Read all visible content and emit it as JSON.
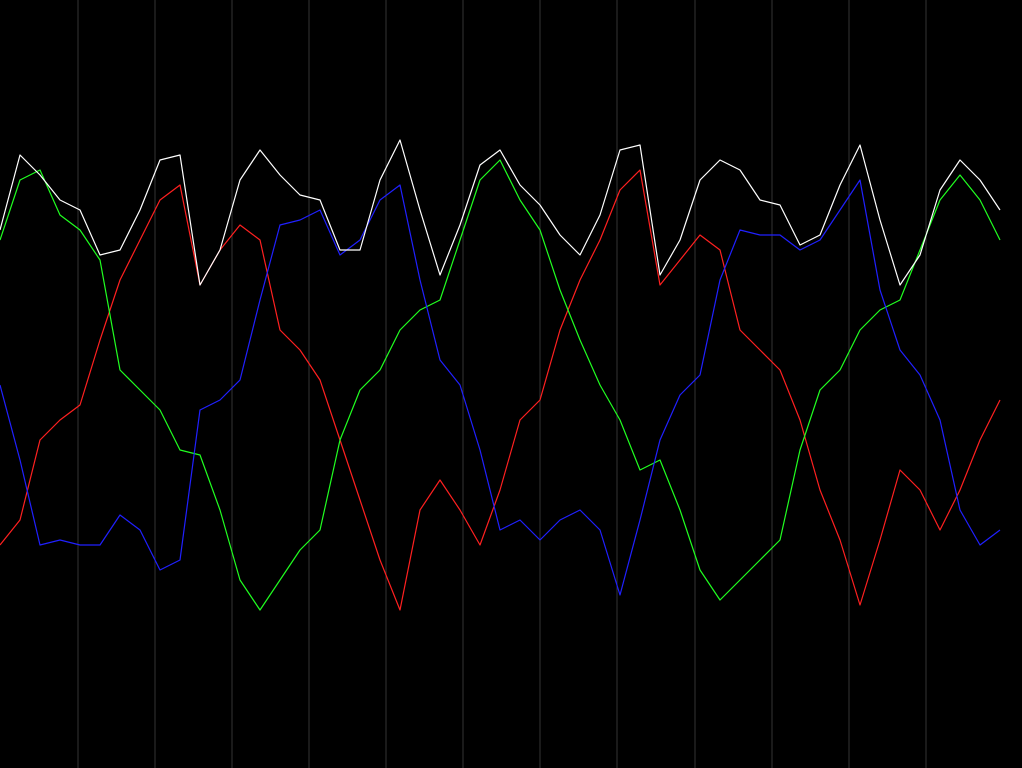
{
  "chart_data": {
    "type": "line",
    "xlim": [
      0,
      1022
    ],
    "ylim": [
      768,
      0
    ],
    "xticks": [
      78,
      155,
      232,
      309,
      386,
      463,
      540,
      617,
      695,
      772,
      849,
      926
    ],
    "grid": true,
    "grid_color": "#333333",
    "background": "#000000",
    "x": [
      0,
      20,
      40,
      60,
      80,
      100,
      120,
      140,
      160,
      180,
      200,
      220,
      240,
      260,
      280,
      300,
      320,
      340,
      360,
      380,
      400,
      420,
      440,
      460,
      480,
      500,
      520,
      540,
      560,
      580,
      600,
      620,
      640,
      660,
      680,
      700,
      720,
      740,
      760,
      780,
      800,
      820,
      840,
      860,
      880,
      900,
      920,
      940,
      960,
      980,
      1000
    ],
    "series": [
      {
        "color": "#ff2020",
        "values": [
          545,
          520,
          440,
          420,
          405,
          340,
          280,
          240,
          200,
          185,
          285,
          250,
          225,
          240,
          330,
          350,
          380,
          440,
          500,
          560,
          610,
          510,
          480,
          510,
          545,
          490,
          420,
          400,
          330,
          280,
          240,
          190,
          170,
          285,
          260,
          235,
          250,
          330,
          350,
          370,
          420,
          490,
          540,
          605,
          540,
          470,
          490,
          530,
          490,
          440,
          400
        ]
      },
      {
        "color": "#20ff20",
        "values": [
          240,
          180,
          170,
          215,
          230,
          260,
          370,
          390,
          410,
          450,
          455,
          510,
          580,
          610,
          580,
          550,
          530,
          440,
          390,
          370,
          330,
          310,
          300,
          240,
          180,
          160,
          200,
          230,
          290,
          340,
          385,
          420,
          470,
          460,
          510,
          570,
          600,
          580,
          560,
          540,
          450,
          390,
          370,
          330,
          310,
          300,
          250,
          200,
          175,
          200,
          240
        ]
      },
      {
        "color": "#2020ff",
        "values": [
          385,
          460,
          545,
          540,
          545,
          545,
          515,
          530,
          570,
          560,
          410,
          400,
          380,
          300,
          225,
          220,
          210,
          255,
          240,
          200,
          185,
          280,
          360,
          385,
          450,
          530,
          520,
          540,
          520,
          510,
          530,
          595,
          520,
          440,
          395,
          375,
          280,
          230,
          235,
          235,
          250,
          240,
          210,
          180,
          290,
          350,
          375,
          420,
          510,
          545,
          530
        ]
      },
      {
        "color": "#ffffff",
        "values": [
          230,
          155,
          175,
          200,
          210,
          255,
          250,
          210,
          160,
          155,
          285,
          250,
          180,
          150,
          175,
          195,
          200,
          250,
          250,
          180,
          140,
          210,
          275,
          225,
          165,
          150,
          185,
          205,
          235,
          255,
          215,
          150,
          145,
          275,
          240,
          180,
          160,
          170,
          200,
          205,
          245,
          235,
          185,
          145,
          220,
          285,
          255,
          190,
          160,
          180,
          210
        ]
      }
    ]
  }
}
